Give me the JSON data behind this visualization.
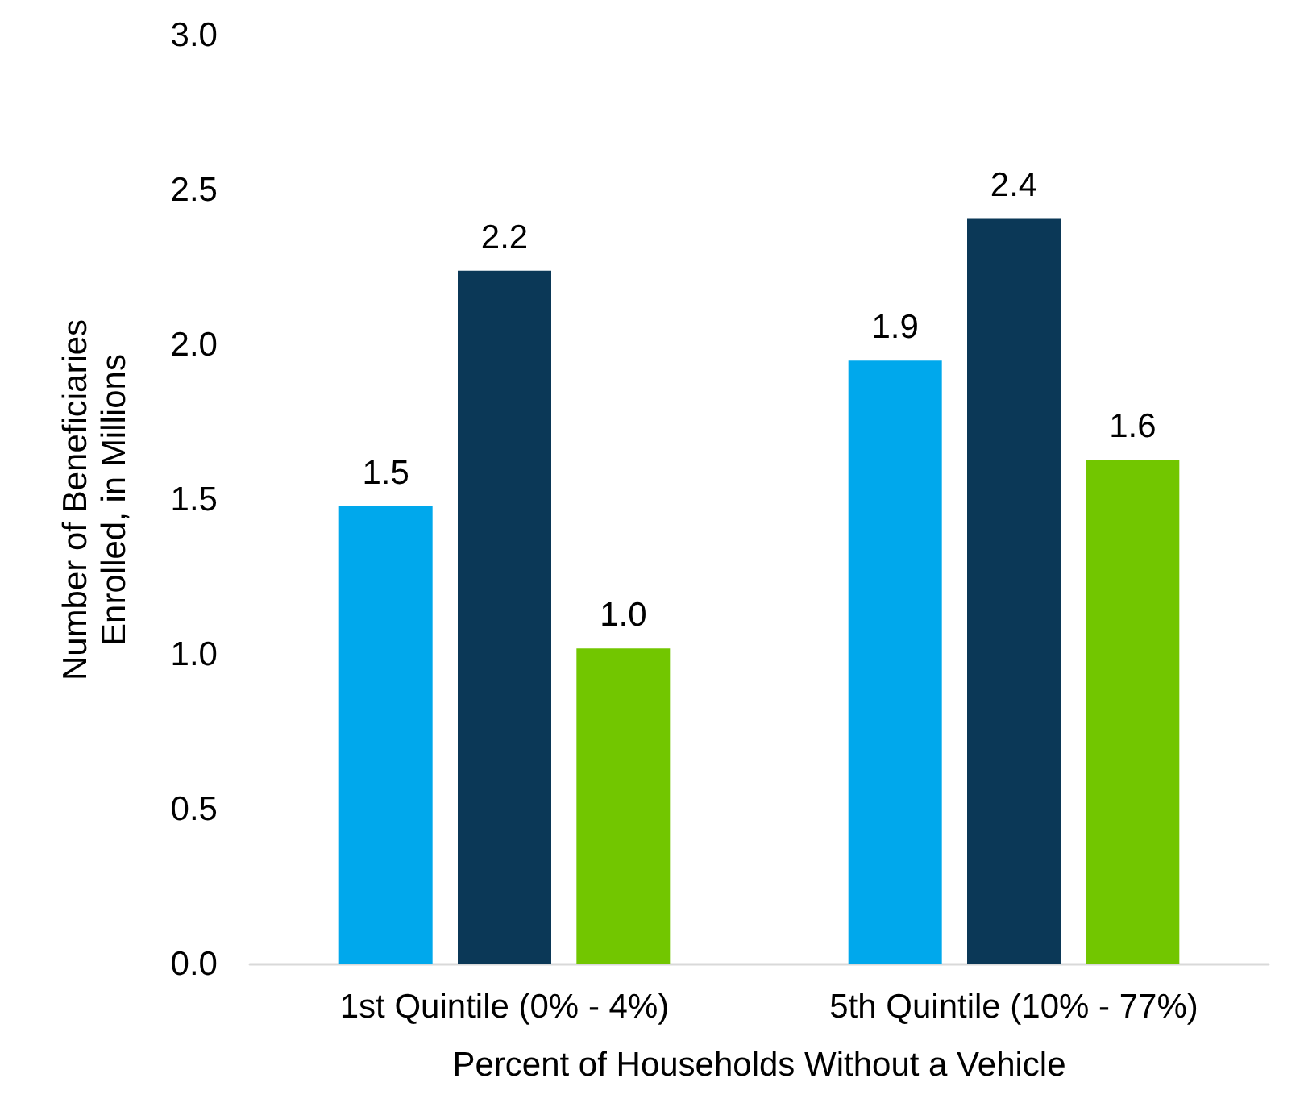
{
  "chart_data": {
    "type": "bar",
    "xlabel": "Percent of Households Without a Vehicle",
    "ylabel": "Number of Beneficiaries Enrolled, in Millions",
    "categories": [
      "1st Quintile (0% - 4%)",
      "5th Quintile (10% - 77%)"
    ],
    "series": [
      {
        "color": "#00a8ec",
        "values": [
          1.48,
          1.95
        ],
        "value_labels": [
          "1.5",
          "1.9"
        ]
      },
      {
        "color": "#0b3857",
        "values": [
          2.24,
          2.41
        ],
        "value_labels": [
          "2.2",
          "2.4"
        ]
      },
      {
        "color": "#72c600",
        "values": [
          1.02,
          1.63
        ],
        "value_labels": [
          "1.0",
          "1.6"
        ]
      }
    ],
    "ylim": [
      0,
      3
    ],
    "yticks": [
      {
        "value": 0,
        "label": "0.0"
      },
      {
        "value": 0.5,
        "label": "0.5"
      },
      {
        "value": 1,
        "label": "1.0"
      },
      {
        "value": 1.5,
        "label": "1.5"
      },
      {
        "value": 2,
        "label": "2.0"
      },
      {
        "value": 2.5,
        "label": "2.5"
      },
      {
        "value": 3,
        "label": "3.0"
      }
    ],
    "grid": false
  }
}
